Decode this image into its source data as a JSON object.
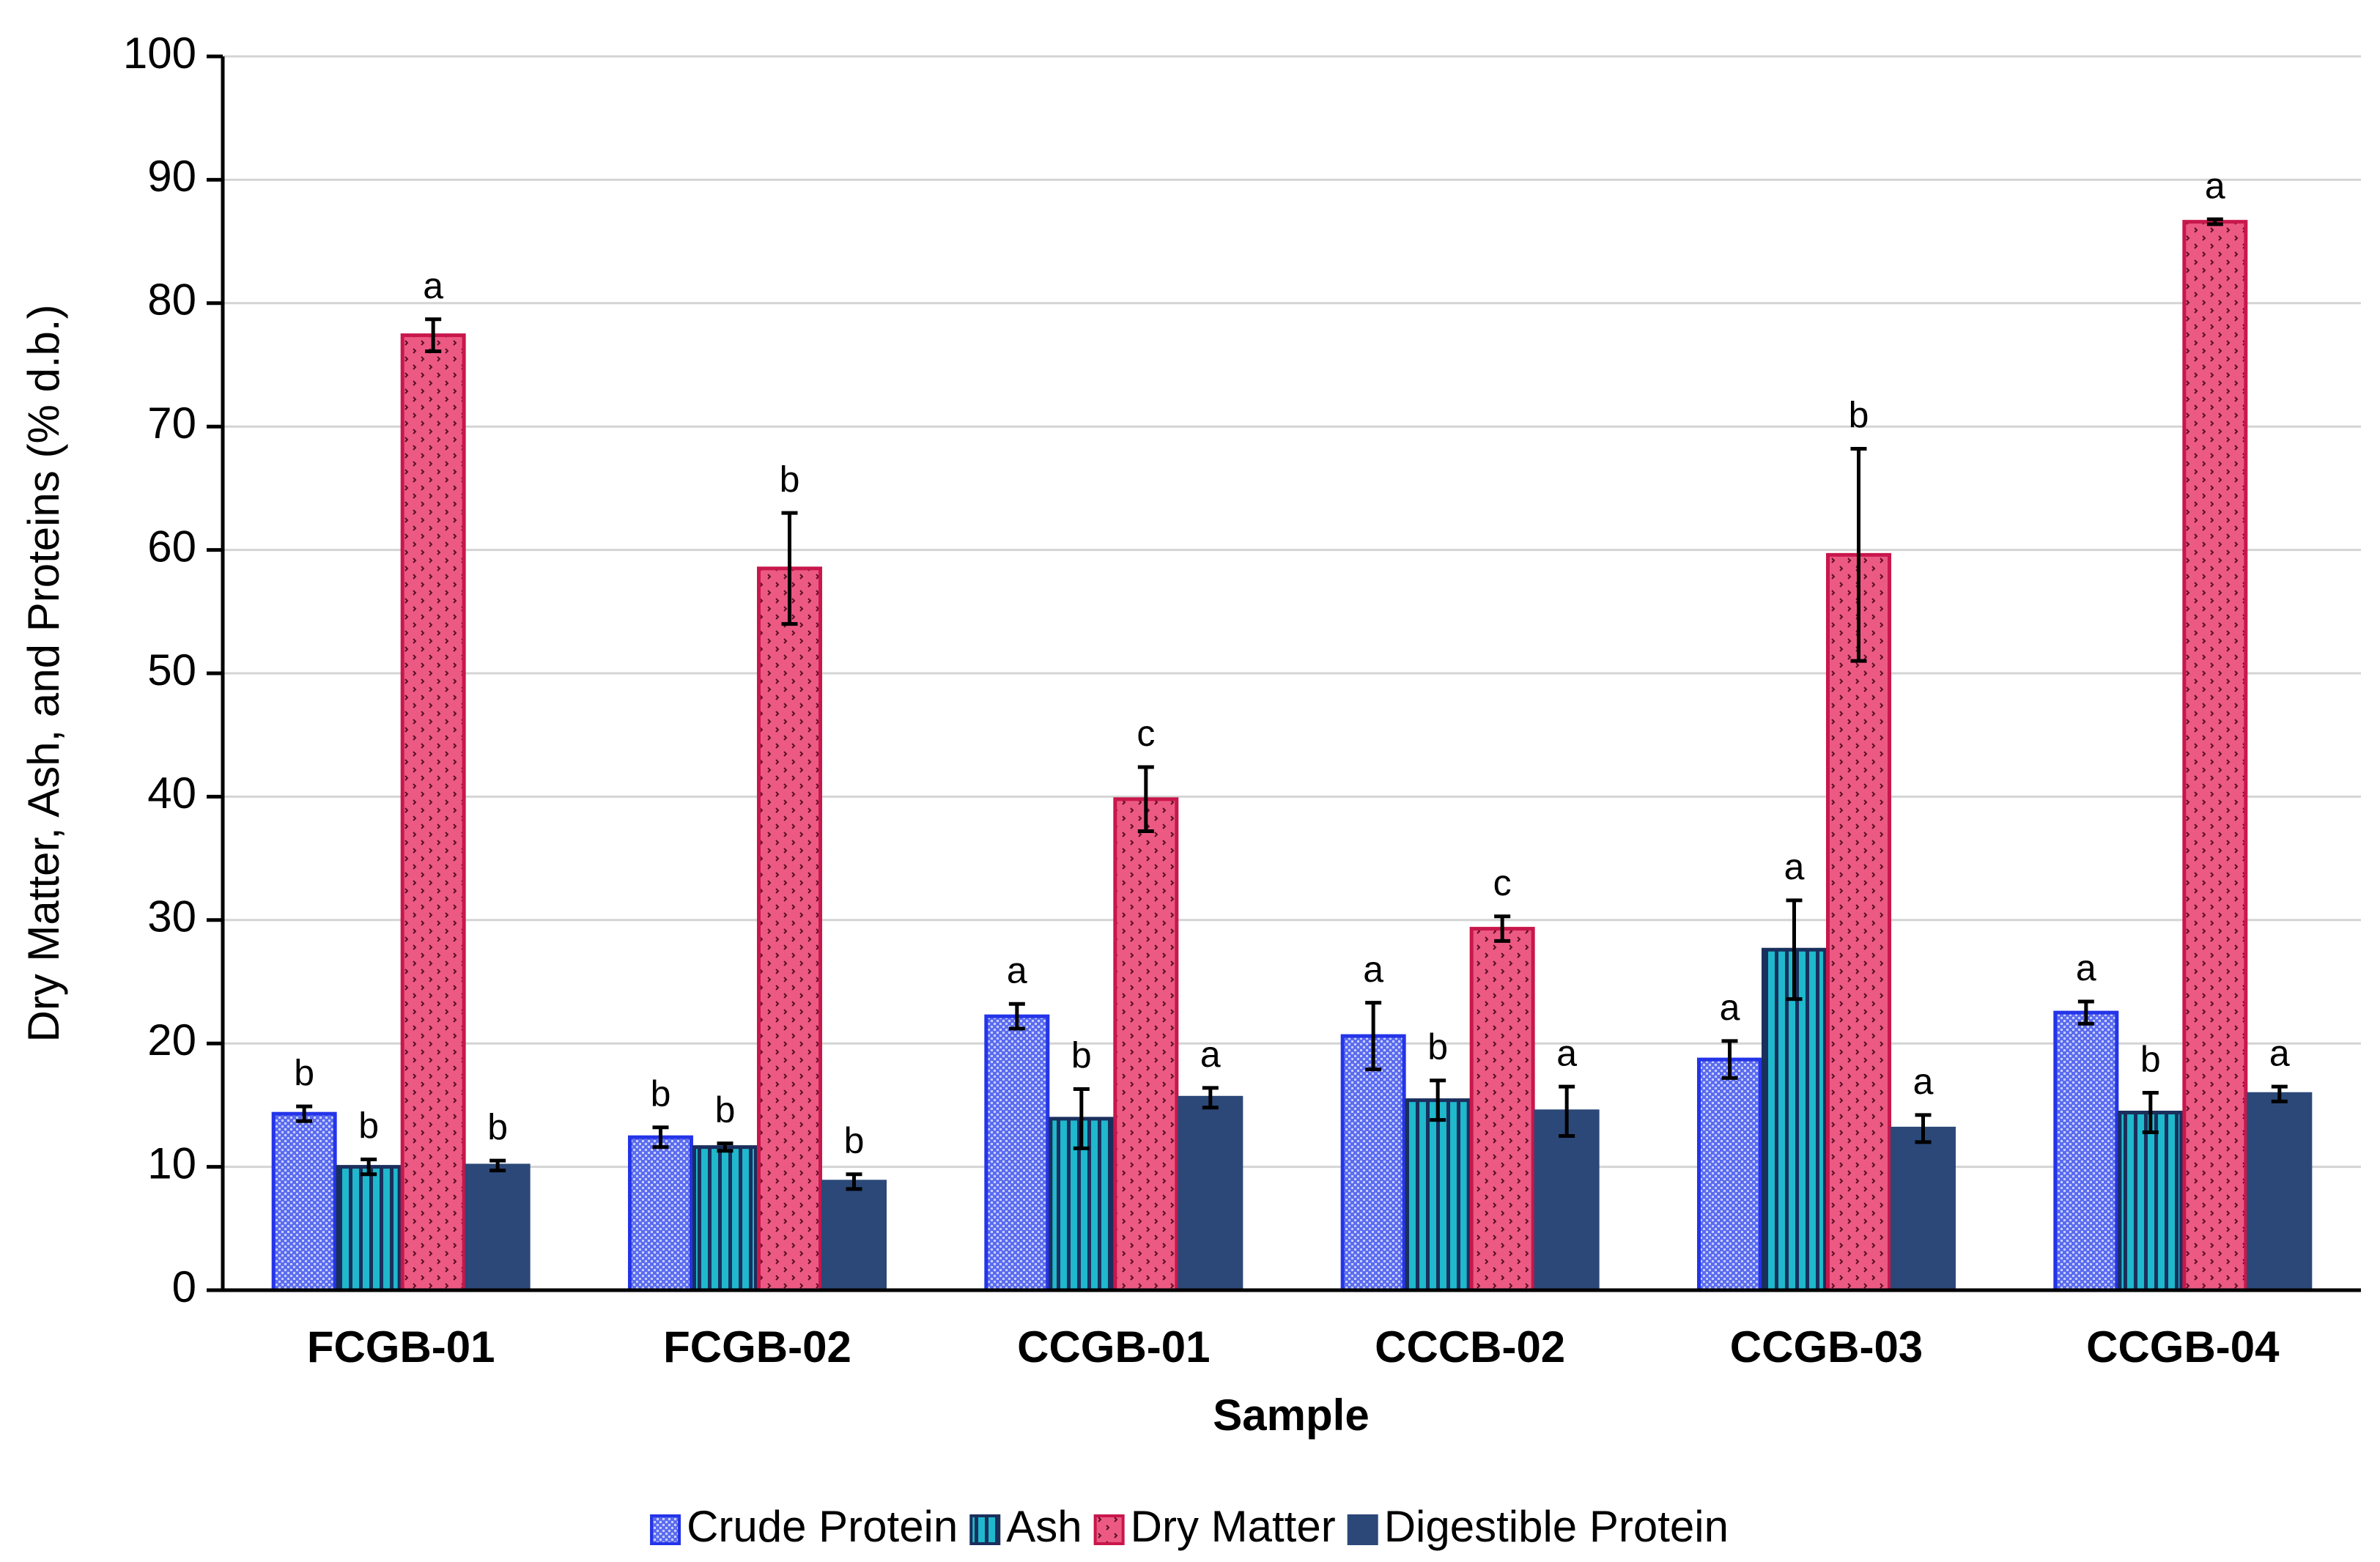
{
  "chart_data": {
    "type": "bar",
    "x_label": "Sample",
    "y_label": "Dry Matter, Ash, and Proteins (% d.b.)",
    "categories": [
      "FCGB-01",
      "FCGB-02",
      "CCGB-01",
      "CCCB-02",
      "CCGB-03",
      "CCGB-04"
    ],
    "ylim": [
      0,
      100
    ],
    "yticks": [
      0,
      10,
      20,
      30,
      40,
      50,
      60,
      70,
      80,
      90,
      100
    ],
    "grid": true,
    "legend": "bottom",
    "series": [
      {
        "name": "Crude Protein",
        "color": "#5b6cf0",
        "edge": "#2434e8",
        "values": [
          14.3,
          12.4,
          22.2,
          20.6,
          18.7,
          22.5
        ],
        "errors": [
          0.6,
          0.8,
          1.0,
          2.7,
          1.5,
          0.9
        ],
        "labels": [
          "b",
          "b",
          "a",
          "a",
          "a",
          "a"
        ]
      },
      {
        "name": "Ash",
        "color": "#1fb8cc",
        "edge": "#1a2f5c",
        "values": [
          10.0,
          11.6,
          13.9,
          15.4,
          27.6,
          14.4
        ],
        "errors": [
          0.6,
          0.3,
          2.4,
          1.6,
          4.0,
          1.6
        ],
        "labels": [
          "b",
          "b",
          "b",
          "b",
          "a",
          "b"
        ]
      },
      {
        "name": "Dry Matter",
        "color": "#ec5a84",
        "edge": "#c8174c",
        "values": [
          77.4,
          58.5,
          39.8,
          29.3,
          59.6,
          86.6
        ],
        "errors": [
          1.3,
          4.5,
          2.6,
          1.0,
          8.6,
          0.2
        ],
        "labels": [
          "a",
          "b",
          "c",
          "c",
          "b",
          "a"
        ]
      },
      {
        "name": "Digestible Protein",
        "color": "#2b4878",
        "edge": "#2b4878",
        "values": [
          10.1,
          8.8,
          15.6,
          14.5,
          13.1,
          15.9
        ],
        "errors": [
          0.4,
          0.6,
          0.8,
          2.0,
          1.1,
          0.6
        ],
        "labels": [
          "b",
          "b",
          "a",
          "a",
          "a",
          "a"
        ]
      }
    ]
  }
}
